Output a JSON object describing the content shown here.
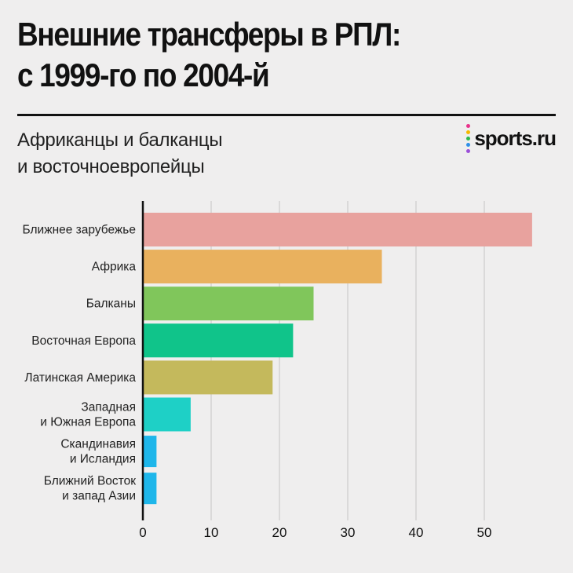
{
  "title": {
    "line1": "Внешние трансферы в РПЛ:",
    "line2": "с 1999-го по 2004-й"
  },
  "subtitle": {
    "line1": "Африканцы и балканцы",
    "line2": "и восточноевропейцы"
  },
  "logo": {
    "text": "sports.ru",
    "dot_colors": [
      "#e8318a",
      "#f5b800",
      "#2db84b",
      "#2d8fe8",
      "#9b4fd8"
    ]
  },
  "chart_data": {
    "type": "bar",
    "orientation": "horizontal",
    "title": "Внешние трансферы в РПЛ: с 1999-го по 2004-й",
    "subtitle": "Африканцы и балканцы и восточноевропейцы",
    "categories": [
      [
        "Ближнее зарубежье"
      ],
      [
        "Африка"
      ],
      [
        "Балканы"
      ],
      [
        "Восточная Европа"
      ],
      [
        "Латинская Америка"
      ],
      [
        "Западная",
        "и Южная Европа"
      ],
      [
        "Скандинавия",
        "и Исландия"
      ],
      [
        "Ближний Восток",
        "и запад Азии"
      ]
    ],
    "values": [
      57,
      35,
      25,
      22,
      19,
      7,
      2,
      2
    ],
    "colors": [
      "#e8a29e",
      "#e9b15e",
      "#80c65b",
      "#10c48a",
      "#c4b95c",
      "#1ed0c6",
      "#1eb6ea",
      "#1eb6ea"
    ],
    "xlim": [
      0,
      57
    ],
    "xticks": [
      0,
      10,
      20,
      30,
      40,
      50
    ],
    "grid": true,
    "xlabel": "",
    "ylabel": ""
  }
}
